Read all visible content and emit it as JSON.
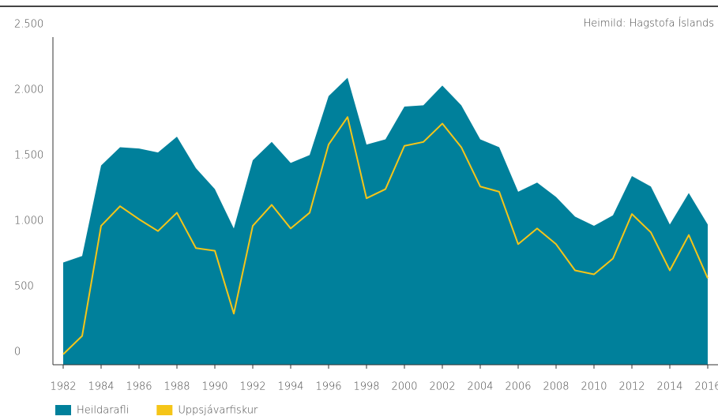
{
  "chart_data": {
    "type": "area-line",
    "source": "Heimild: Hagstofa Íslands",
    "x": [
      1982,
      1983,
      1984,
      1985,
      1986,
      1987,
      1988,
      1989,
      1990,
      1991,
      1992,
      1993,
      1994,
      1995,
      1996,
      1997,
      1998,
      1999,
      2000,
      2001,
      2002,
      2003,
      2004,
      2005,
      2006,
      2007,
      2008,
      2009,
      2010,
      2011,
      2012,
      2013,
      2014,
      2015,
      2016
    ],
    "series": [
      {
        "name": "Heildarafli",
        "color": "#00809b",
        "kind": "area",
        "values": [
          780,
          830,
          1520,
          1660,
          1650,
          1620,
          1740,
          1500,
          1340,
          1040,
          1560,
          1700,
          1540,
          1600,
          2050,
          2190,
          1680,
          1720,
          1970,
          1980,
          2130,
          1980,
          1720,
          1660,
          1320,
          1390,
          1280,
          1130,
          1060,
          1140,
          1440,
          1360,
          1070,
          1310,
          1070
        ]
      },
      {
        "name": "Uppsjávarfiskur",
        "color": "#f5c518",
        "kind": "line",
        "values": [
          80,
          220,
          1060,
          1210,
          1110,
          1020,
          1160,
          890,
          870,
          390,
          1060,
          1220,
          1040,
          1160,
          1680,
          1890,
          1270,
          1340,
          1670,
          1700,
          1840,
          1660,
          1360,
          1320,
          920,
          1040,
          920,
          720,
          690,
          810,
          1150,
          1010,
          720,
          990,
          660
        ]
      }
    ],
    "xlim": [
      1982,
      2016
    ],
    "xticks": [
      1982,
      1984,
      1986,
      1988,
      1990,
      1992,
      1994,
      1996,
      1998,
      2000,
      2002,
      2004,
      2006,
      2008,
      2010,
      2012,
      2014,
      2016
    ],
    "ylim": [
      0,
      2500
    ],
    "yticks": [
      0,
      500,
      {
        "value": 1000,
        "label": "1.000"
      },
      {
        "value": 1500,
        "label": "1.500"
      },
      {
        "value": 2000,
        "label": "2.000"
      },
      {
        "value": 2500,
        "label": "2.500"
      }
    ]
  }
}
